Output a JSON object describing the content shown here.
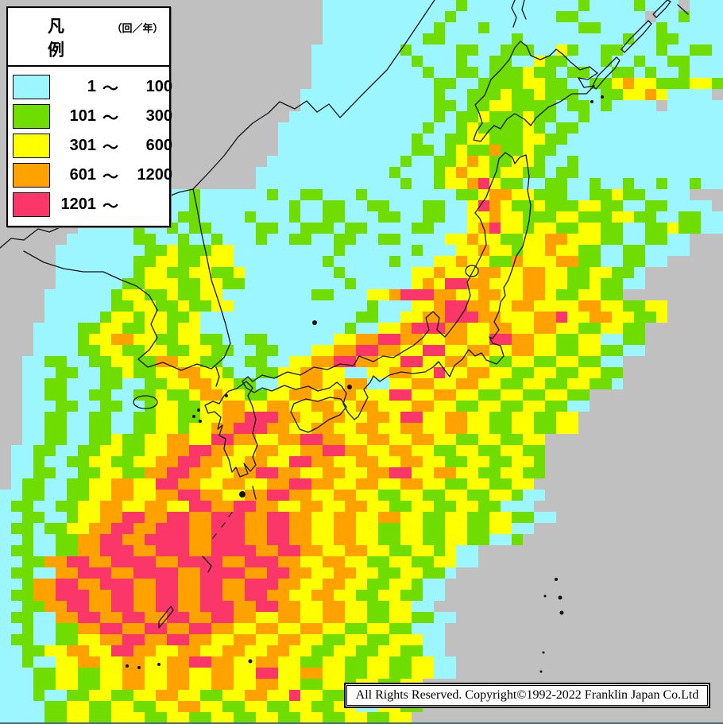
{
  "map": {
    "cols": 65,
    "rows": 65,
    "cell_size": 14,
    "background": "#c0c0c0",
    "coastline_color": "#141414",
    "palette": {
      ".": "#c0c0c0",
      "c": "#9cf6ff",
      "g": "#6fdd00",
      "y": "#ffff00",
      "o": "#ffa200",
      "p": "#fa3768"
    },
    "rows_rle": [
      "29.12cg10cg4cg3c.3c",
      "29.11cg9c2g6c.2cg3c",
      "29.10cg3cg8c2g5cg5c",
      "29.9c2g6cg9cg2c2g4c",
      "28.8cg4c2g2c3g2cyg2c2g3cg2c2gc",
      "28.9cg3cg2c2g2cy2g3cg2cg2c2g3c",
      "28.10cg2c2gc3gy2gc2g2c2gcg2cg3c",
      "28.11c2g2c4g2y2g2c2gyo2y3g2y2g2c",
      "27.12cg2c3gy2gy3g2c2g2yoy4c.c",
      "27.12c2gc2g2y4gc2gcg4c.5c",
      "26.13cgc2gy3gy2g2cg12c",
      "25.13cg2cgy4gygc2g13c",
      "25.12cg2c2g2y3g2y2g14c",
      "25.12c2gcgy2go2gy2g15c",
      "24.12cg2c2gyoy2g2yg2cg13c",
      "23.12cg3cgyo2yg2y2gc2g13c",
      "23.13cg2cg2yopy2g2c2g2cg2cg2cg2cg2c",
      "13.4cg6cg2c2g3cg8c2gy2o2yg2g2c2gy2g4c2.",
      "11.3cg2cg8cg2c2g2c2g3c2g2cypoy2gy3g2y2g2c2g4c.",
      "8.4cg3c2g4cg3cg2c2g3c2g2c2g2c2yo2yg2g2y3g2y2g2c2g2c",
      "7.5cg2cgc2g4c2g2c3gc2g4c2g3cyop2yg2y2g2y2g2c2gy2g2c",
      "6.6c2g2cg2cg3cg2c2g2c2g2c2g4c2yo2y2g2y2o3y2g2c2g2c2.",
      "5.8c2gy3g2y9cg6cg3c2yo2yg2yo2y2g2c2g4c3.",
      "5.7c2g2y2g3y8cg5cg3c2yo2y2go3y2o2g2c2g2c4.",
      "5.7cg2y2g2y2gy8cg6c2yo3y2o2y2o2y2g2y2gc5.",
      "5.6c2g3y2g2y2g9cg5cyoy2p2o3y2o2y2gy2g2c5.",
      "4.6cg2y2gy2g2y8c2g3c2yo3p2o2y2o2y2oy2g2y2g6.",
      "4.6c2g2y2gy2g2y12cg3c2yo2p2o2y2o4y2o2y2g2y7.",
      "4.5cg2yg2y2gy14c2g2c2y2o3p2o3y2op2y2o2y2gy8.",
      "3.4c2g2y2g2yg2y13cg2c2yo3p2o2y2o2y2o2y2g2y2g8.",
      "3.4cg2y2o2y2g2y2g2c2g6c2y2o2p2o2y2o2y2p2o2y2g2y2c2g9.",
      "3.4c2g2y2g2y2g2y2g2c2g3c2y2o2p2o2y2p2y2o2y2o2y2g2y2g2c9.",
      "2.2c2g2c2g2y2g2o2y2g2c2g2c2y2o2p2o2y2p2y2o2y2g2y2g2y2g2c10.",
      "2.3c2g2c2gy2g2y2o2yg2c2g2y2o2y2c2y2o2yp2y2o2y2g2y2g2y2g10.",
      "2.2c2g3c2g2c2g2y2o2y2g2c2y2o2y2o2c2y2o2y2o2y2g2y2g2y2gc10.",
      "2.2c2g2c2g2c2gy2gy2o2y2g2y2o2y2o3y2p2y2o2y2g2y2g2y2g11.",
      "2.3c2g2c2g2cg2y2g2y2o2y2o2y2o2y2o3y2o2y2g2y2g2y2g2c11.",
      "2.2c2g2c2g2c2g2y2g2y2o3p2o2y2o2y2oy2p2y2o2y2g2y2g2y12.",
      "2.2c2g2c2g2c2g2yg2y2o3p2o2y2o2y2o2y2o2y2o2y2g2y2g2y12.",
      "2.2c2g2c2gy2g2y2o2y2p2o2y2o2p2o2y2o2y2o2y2g2y2g2y13.",
      "1.2c2g2c2g2y2g2y2o2p2o2y2o2y2o2p2o2y2o2y2g2y2g2y2g13.",
      "1.2cg2c2g2y2g2y2o2p2o2y2o2y2p2o2y2o2y2o2y2g2y2g2yg13.",
      "1.2c2g2c2g2y2g2o2p2o2y2o2p2o2y2o2y2o2p2y2o2y2g2y2g14.",
      "1.c2g2c2g2y2o2y2p2o2y2o2y2o2p2o2y2o2y2o2y2g2y2g2y14.",
      "2c2g2c2g2y2o2y2o2p2o2y2o2p2o2y2o2y2g2y2g2y2g2yg2c15.",
      "c2g2c2g2y2o2y2o2y2p2o2p2o2y2o2y2o2y2g2y2g2y2g3c16.",
      "2c2g2cg2y2o2p2o2p2o3p2o2p2o2y2o2y2o2y2g2y2g2y2g2c17.",
      "c2gc2g2y2o2p2o3p2o3p2o2p2o2y2o2y2g2y2g2y2g2y2c19.",
      "2cg2c2g2o2p2o4p2o3p2o2p2o2y2o2y2g2y2g2y2g2cg20.",
      "c2g2c2g2o3p2o3p2o4p2o2p2o2y2o2y2g2ygy2c21.",
      "2c2g2o2p2o4p2o4p2o3p2o2y2o2y2g2y2g2y2c21.",
      "c2g2c2o3p2o4p2o4p2o2p2o2y2o2y2g2y2gc23.",
      "2cg2o2p2o3p2o2p2o2p2o3p2o2y2o2y2g2yg2c24.",
      "c2g2o3p2o2p2o2p2o2p2o2p2o2y2o2y2g2y2g2c25.",
      "2c2g2o2p2o2p2o2p2o3p2o2p2o2y2o2y2g2y2c26.",
      "c2g2c2o2p2o2p2o2p2o2p2o2y2o2y2o2y2g2y2g2c26.",
      "2cg2c2g2o2p2o2p2o2p2o2y2o2y2o2y2g2y2g3c26.",
      "c2g2c2g2y2o2p2o2p2o2y2o2y2o2y2g2y2g3y2c.25.",
      "2c2g2y2o2y2p2o2y2o2y2o2y2o2y2g2y2g2y2g2c26.",
      "2cg2c2y2o2y2o2y2o2p2o2y2o2y2g2y2g2y2g2y2c.25.",
      "3c2g2y2g2y2o2y2o2y2o2y2p2y2o2y2g2y2g2y2c26.",
      "3c2g2y2g2y2o2y2o2y2o2y2o2y2g2yg2y2g2y27.",
      "3cg2c2g2y2g2y2o2y2g2y2o2yp2y2g2y2g2yg2c27.",
      "4c2g2y2g2y2g2y2o2y2g2y2g2y2g2y2c2y2g27.",
      "4c2g2y2g3y2g2y2g2y2g2y2g2y2g2y2g2y27."
    ]
  },
  "legend": {
    "title": "凡　例",
    "unit": "（回／年）",
    "tilde": "～",
    "items": [
      {
        "from": "1",
        "to": "100",
        "color": "#9cf6ff"
      },
      {
        "from": "101",
        "to": "300",
        "color": "#6fdd00"
      },
      {
        "from": "301",
        "to": "600",
        "color": "#ffff00"
      },
      {
        "from": "601",
        "to": "1200",
        "color": "#ffa200"
      },
      {
        "from": "1201",
        "to": "",
        "color": "#fa3768"
      }
    ]
  },
  "copyright": {
    "text": "All Rights Reserved. Copyright©1992-2022 Franklin Japan Co.Ltd"
  }
}
